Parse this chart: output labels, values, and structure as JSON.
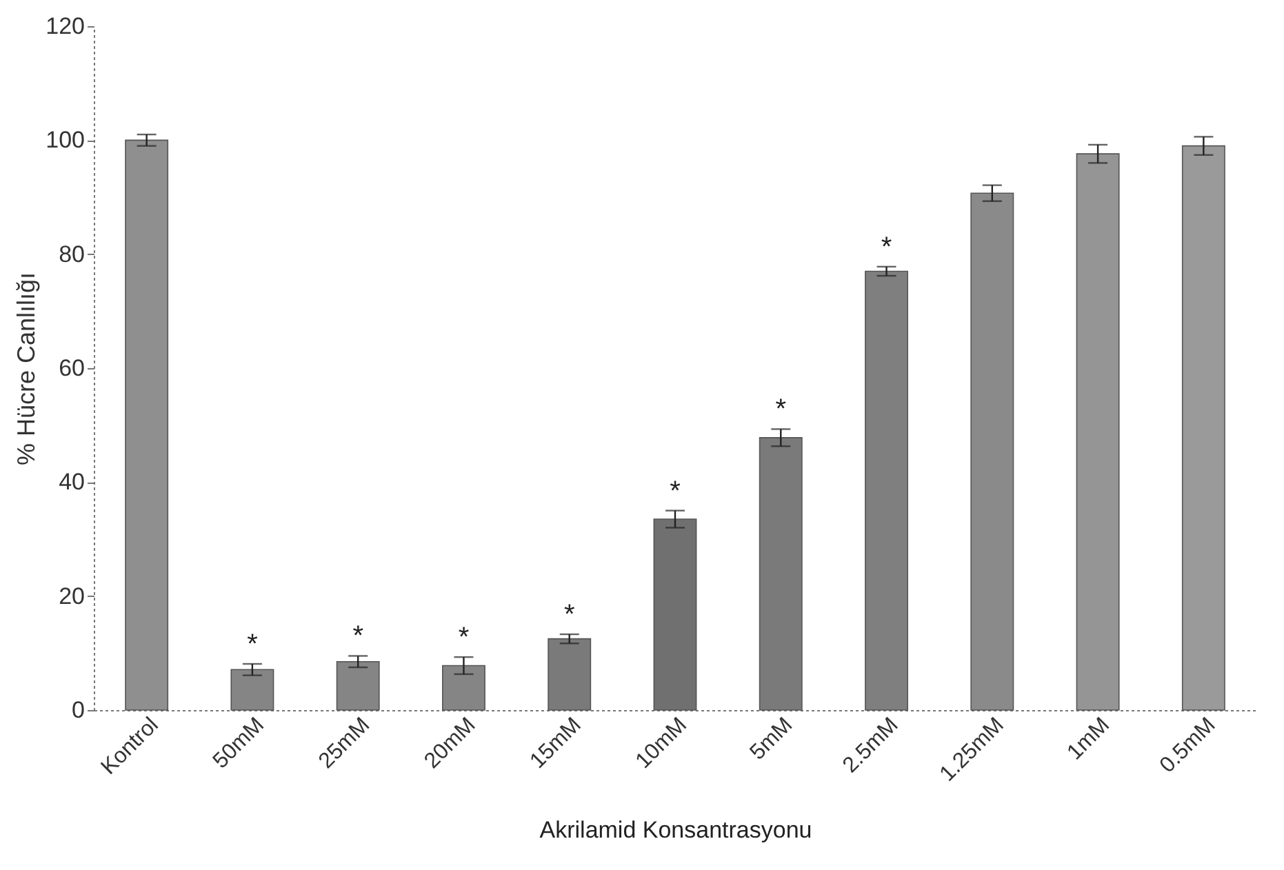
{
  "chart_data": {
    "type": "bar",
    "xlabel": "Akrilamid Konsantrasyonu",
    "ylabel": "% Hücre Canlılığı",
    "categories": [
      "Kontrol",
      "50mM",
      "25mM",
      "20mM",
      "15mM",
      "10mM",
      "5mM",
      "2.5mM",
      "1.25mM",
      "1mM",
      "0.5mM"
    ],
    "values": [
      100,
      7.1,
      8.5,
      7.8,
      12.5,
      33.5,
      47.8,
      77,
      90.7,
      97.6,
      99
    ],
    "errors": [
      1,
      1,
      1,
      1.5,
      0.8,
      1.5,
      1.5,
      0.8,
      1.4,
      1.6,
      1.6
    ],
    "colors": [
      "#8f8f8f",
      "#858585",
      "#858585",
      "#858585",
      "#7a7a7a",
      "#707070",
      "#7a7a7a",
      "#7f7f7f",
      "#8a8a8a",
      "#959595",
      "#9a9a9a"
    ],
    "ylim": [
      0,
      120
    ],
    "yticks": [
      0,
      20,
      40,
      60,
      80,
      100,
      120
    ],
    "grid": false,
    "annotations": [
      {
        "text": "*",
        "x": "50mM",
        "y": 8.1
      },
      {
        "text": "*",
        "x": "25mM",
        "y": 9.5
      },
      {
        "text": "*",
        "x": "20mM",
        "y": 9.3
      },
      {
        "text": "*",
        "x": "15mM",
        "y": 13.3
      },
      {
        "text": "*",
        "x": "10mM",
        "y": 35
      },
      {
        "text": "*",
        "x": "5mM",
        "y": 49.3
      },
      {
        "text": "*",
        "x": "2.5mM",
        "y": 77.8
      }
    ]
  }
}
